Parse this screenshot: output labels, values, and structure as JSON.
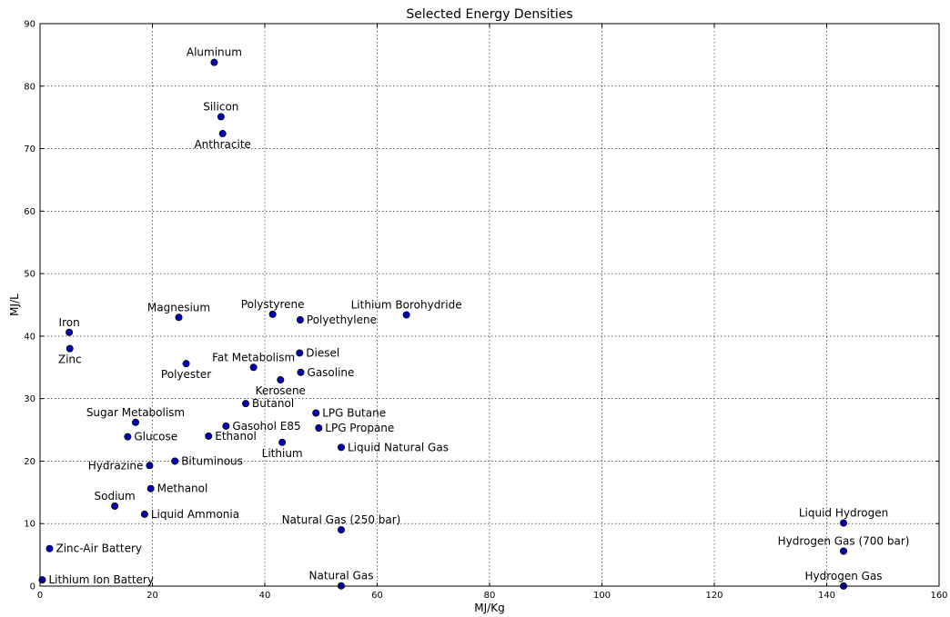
{
  "chart_data": {
    "type": "scatter",
    "title": "Selected Energy Densities",
    "xlabel": "MJ/Kg",
    "ylabel": "MJ/L",
    "xlim": [
      0,
      160
    ],
    "ylim": [
      0,
      90
    ],
    "xticks": [
      0,
      20,
      40,
      60,
      80,
      100,
      120,
      140,
      160
    ],
    "yticks": [
      0,
      10,
      20,
      30,
      40,
      50,
      60,
      70,
      80,
      90
    ],
    "grid": true,
    "marker_color": "#0000bb",
    "points": [
      {
        "label": "Aluminum",
        "x": 31.0,
        "y": 83.8,
        "label_pos": "above"
      },
      {
        "label": "Silicon",
        "x": 32.2,
        "y": 75.1,
        "label_pos": "above"
      },
      {
        "label": "Anthracite",
        "x": 32.5,
        "y": 72.4,
        "label_pos": "below"
      },
      {
        "label": "Magnesium",
        "x": 24.7,
        "y": 43.0,
        "label_pos": "above"
      },
      {
        "label": "Polystyrene",
        "x": 41.4,
        "y": 43.5,
        "label_pos": "above"
      },
      {
        "label": "Polyethylene",
        "x": 46.3,
        "y": 42.6,
        "label_pos": "right"
      },
      {
        "label": "Lithium Borohydride",
        "x": 65.2,
        "y": 43.4,
        "label_pos": "above"
      },
      {
        "label": "Iron",
        "x": 5.2,
        "y": 40.6,
        "label_pos": "above"
      },
      {
        "label": "Zinc",
        "x": 5.3,
        "y": 38.0,
        "label_pos": "below"
      },
      {
        "label": "Polyester",
        "x": 26.0,
        "y": 35.6,
        "label_pos": "below"
      },
      {
        "label": "Fat Metabolism",
        "x": 38.0,
        "y": 35.0,
        "label_pos": "above"
      },
      {
        "label": "Diesel",
        "x": 46.2,
        "y": 37.3,
        "label_pos": "right"
      },
      {
        "label": "Gasoline",
        "x": 46.4,
        "y": 34.2,
        "label_pos": "right"
      },
      {
        "label": "Kerosene",
        "x": 42.8,
        "y": 33.0,
        "label_pos": "below"
      },
      {
        "label": "Butanol",
        "x": 36.6,
        "y": 29.2,
        "label_pos": "right"
      },
      {
        "label": "Sugar Metabolism",
        "x": 17.0,
        "y": 26.2,
        "label_pos": "above"
      },
      {
        "label": "LPG Butane",
        "x": 49.1,
        "y": 27.7,
        "label_pos": "right"
      },
      {
        "label": "LPG Propane",
        "x": 49.6,
        "y": 25.3,
        "label_pos": "right"
      },
      {
        "label": "Gasohol E85",
        "x": 33.1,
        "y": 25.6,
        "label_pos": "right"
      },
      {
        "label": "Glucose",
        "x": 15.6,
        "y": 23.9,
        "label_pos": "right"
      },
      {
        "label": "Ethanol",
        "x": 30.0,
        "y": 24.0,
        "label_pos": "right"
      },
      {
        "label": "Lithium",
        "x": 43.1,
        "y": 23.0,
        "label_pos": "below"
      },
      {
        "label": "Liquid Natural Gas",
        "x": 53.6,
        "y": 22.2,
        "label_pos": "right"
      },
      {
        "label": "Hydrazine",
        "x": 19.5,
        "y": 19.3,
        "label_pos": "left"
      },
      {
        "label": "Bituminous",
        "x": 24.0,
        "y": 20.0,
        "label_pos": "right"
      },
      {
        "label": "Methanol",
        "x": 19.7,
        "y": 15.6,
        "label_pos": "right"
      },
      {
        "label": "Sodium",
        "x": 13.3,
        "y": 12.8,
        "label_pos": "above"
      },
      {
        "label": "Liquid Ammonia",
        "x": 18.6,
        "y": 11.5,
        "label_pos": "right"
      },
      {
        "label": "Natural Gas (250 bar)",
        "x": 53.6,
        "y": 9.0,
        "label_pos": "above"
      },
      {
        "label": "Liquid Hydrogen",
        "x": 143.0,
        "y": 10.1,
        "label_pos": "above"
      },
      {
        "label": "Zinc-Air Battery",
        "x": 1.7,
        "y": 6.0,
        "label_pos": "right"
      },
      {
        "label": "Hydrogen Gas (700 bar)",
        "x": 143.0,
        "y": 5.6,
        "label_pos": "above"
      },
      {
        "label": "Lithium Ion Battery",
        "x": 0.4,
        "y": 1.0,
        "label_pos": "right"
      },
      {
        "label": "Natural Gas",
        "x": 53.6,
        "y": 0.04,
        "label_pos": "above"
      },
      {
        "label": "Hydrogen Gas",
        "x": 143.0,
        "y": 0.01,
        "label_pos": "above"
      }
    ]
  }
}
